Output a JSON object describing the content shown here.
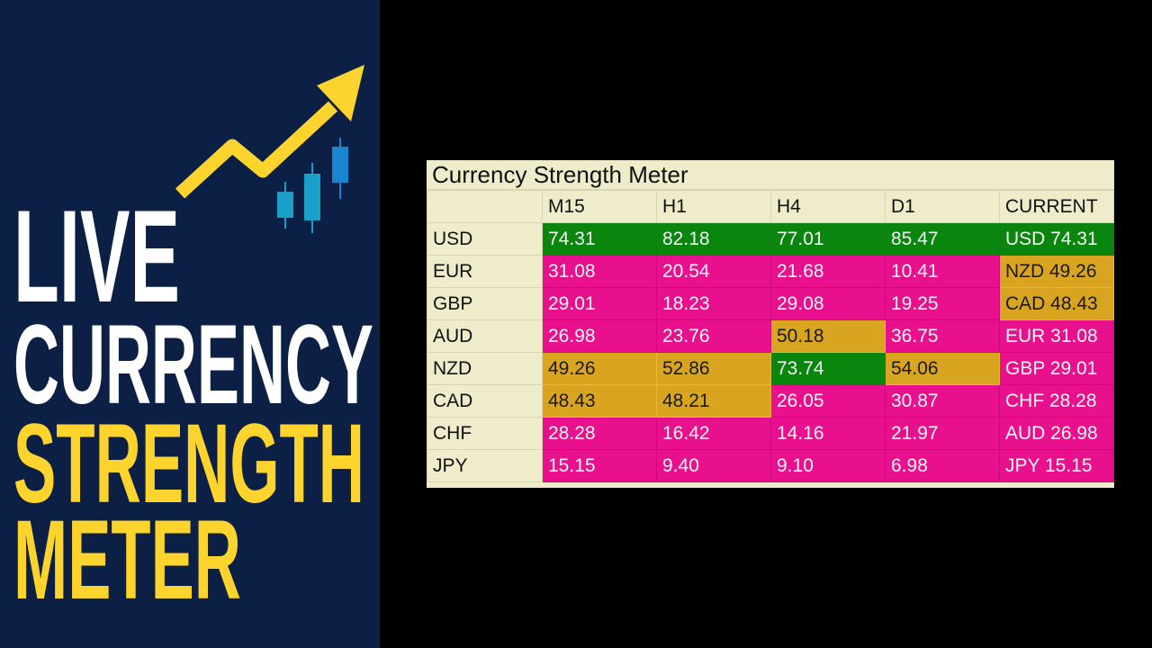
{
  "banner": {
    "lines": [
      "LIVE",
      "CURRENCY",
      "STRENGTH",
      "METER"
    ],
    "colors": {
      "white": "#ffffff",
      "yellow": "#fdd42e",
      "navy": "#0c1f44"
    }
  },
  "meter": {
    "title": "Currency Strength Meter",
    "columns": [
      "",
      "M15",
      "H1",
      "H4",
      "D1",
      "CURRENT"
    ],
    "colors": {
      "strong": "#0a860e",
      "neutral": "#d9a520",
      "weak": "#e8108c"
    },
    "rows": [
      {
        "label": "USD",
        "cells": [
          {
            "v": "74.31",
            "c": "strong"
          },
          {
            "v": "82.18",
            "c": "strong"
          },
          {
            "v": "77.01",
            "c": "strong"
          },
          {
            "v": "85.47",
            "c": "strong"
          },
          {
            "v": "USD 74.31",
            "c": "strong"
          }
        ]
      },
      {
        "label": "EUR",
        "cells": [
          {
            "v": "31.08",
            "c": "weak"
          },
          {
            "v": "20.54",
            "c": "weak"
          },
          {
            "v": "21.68",
            "c": "weak"
          },
          {
            "v": "10.41",
            "c": "weak"
          },
          {
            "v": "NZD 49.26",
            "c": "neutral"
          }
        ]
      },
      {
        "label": "GBP",
        "cells": [
          {
            "v": "29.01",
            "c": "weak"
          },
          {
            "v": "18.23",
            "c": "weak"
          },
          {
            "v": "29.08",
            "c": "weak"
          },
          {
            "v": "19.25",
            "c": "weak"
          },
          {
            "v": "CAD 48.43",
            "c": "neutral"
          }
        ]
      },
      {
        "label": "AUD",
        "cells": [
          {
            "v": "26.98",
            "c": "weak"
          },
          {
            "v": "23.76",
            "c": "weak"
          },
          {
            "v": "50.18",
            "c": "neutral"
          },
          {
            "v": "36.75",
            "c": "weak"
          },
          {
            "v": "EUR 31.08",
            "c": "weak"
          }
        ]
      },
      {
        "label": "NZD",
        "cells": [
          {
            "v": "49.26",
            "c": "neutral"
          },
          {
            "v": "52.86",
            "c": "neutral"
          },
          {
            "v": "73.74",
            "c": "strong"
          },
          {
            "v": "54.06",
            "c": "neutral"
          },
          {
            "v": "GBP 29.01",
            "c": "weak"
          }
        ]
      },
      {
        "label": "CAD",
        "cells": [
          {
            "v": "48.43",
            "c": "neutral"
          },
          {
            "v": "48.21",
            "c": "neutral"
          },
          {
            "v": "26.05",
            "c": "weak"
          },
          {
            "v": "30.87",
            "c": "weak"
          },
          {
            "v": "CHF 28.28",
            "c": "weak"
          }
        ]
      },
      {
        "label": "CHF",
        "cells": [
          {
            "v": "28.28",
            "c": "weak"
          },
          {
            "v": "16.42",
            "c": "weak"
          },
          {
            "v": "14.16",
            "c": "weak"
          },
          {
            "v": "21.97",
            "c": "weak"
          },
          {
            "v": "AUD 26.98",
            "c": "weak"
          }
        ]
      },
      {
        "label": "JPY",
        "cells": [
          {
            "v": "15.15",
            "c": "weak"
          },
          {
            "v": "9.40",
            "c": "weak"
          },
          {
            "v": "9.10",
            "c": "weak"
          },
          {
            "v": "6.98",
            "c": "weak"
          },
          {
            "v": "JPY 15.15",
            "c": "weak"
          }
        ]
      }
    ]
  }
}
